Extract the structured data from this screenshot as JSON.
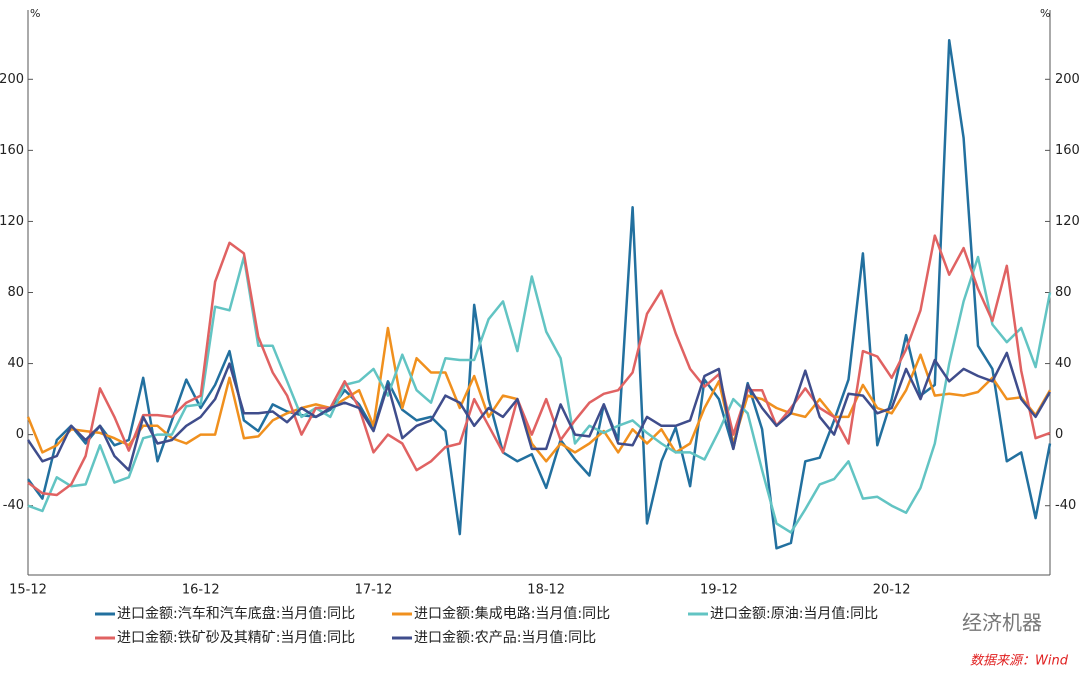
{
  "chart_data": {
    "type": "line",
    "y_unit": "%",
    "categories": [
      "15-12",
      null,
      null,
      null,
      null,
      null,
      null,
      null,
      null,
      null,
      null,
      null,
      "16-12",
      null,
      null,
      null,
      null,
      null,
      null,
      null,
      null,
      null,
      null,
      null,
      "17-12",
      null,
      null,
      null,
      null,
      null,
      null,
      null,
      null,
      null,
      null,
      null,
      "18-12",
      null,
      null,
      null,
      null,
      null,
      null,
      null,
      null,
      null,
      null,
      null,
      "19-12",
      null,
      null,
      null,
      null,
      null,
      null,
      null,
      null,
      null,
      null,
      null,
      "20-12",
      null,
      null,
      null,
      null,
      null,
      null,
      null,
      null,
      null,
      null,
      null
    ],
    "series": [
      {
        "name": "进口金额:汽车和汽车底盘:当月值:同比",
        "color": "#22709f",
        "values": [
          -25,
          -36,
          -3,
          5,
          -5,
          5,
          -6,
          -3,
          32,
          -15,
          8,
          31,
          15,
          28,
          47,
          8,
          2,
          17,
          13,
          11,
          10,
          14,
          25,
          17,
          3,
          30,
          14,
          8,
          10,
          2,
          -56,
          73,
          20,
          -10,
          -15,
          -11,
          -30,
          -3,
          -14,
          -23,
          17,
          -3,
          128,
          -50,
          -15,
          4,
          -29,
          31,
          20,
          -8,
          29,
          3,
          -64,
          -61,
          -15,
          -13,
          8,
          31,
          102,
          -6,
          20,
          56,
          22,
          28,
          222,
          167,
          50,
          37,
          -15,
          -10,
          -47,
          -5
        ]
      },
      {
        "name": "进口金额:集成电路:当月值:同比",
        "color": "#f0901e",
        "values": [
          10,
          -10,
          -6,
          3,
          2,
          1,
          -2,
          -6,
          5,
          5,
          -2,
          -5,
          0,
          0,
          32,
          -2,
          -1,
          8,
          12,
          15,
          17,
          15,
          20,
          25,
          5,
          60,
          15,
          43,
          35,
          35,
          15,
          33,
          10,
          22,
          20,
          -5,
          -15,
          -5,
          -10,
          -5,
          2,
          -10,
          3,
          -5,
          3,
          -10,
          -5,
          15,
          30,
          -5,
          22,
          20,
          15,
          12,
          10,
          20,
          10,
          10,
          28,
          15,
          12,
          25,
          45,
          22,
          23,
          22,
          24,
          32,
          20,
          21,
          11,
          25
        ]
      },
      {
        "name": "进口金额:原油:当月值:同比",
        "color": "#62c4c3",
        "values": [
          -40,
          -43,
          -24,
          -29,
          -28,
          -6,
          -27,
          -24,
          -2,
          0,
          0,
          16,
          17,
          72,
          70,
          100,
          50,
          50,
          30,
          10,
          15,
          10,
          28,
          30,
          37,
          22,
          45,
          25,
          18,
          43,
          42,
          42,
          65,
          75,
          47,
          89,
          58,
          43,
          -5,
          5,
          1,
          5,
          8,
          1,
          -5,
          -10,
          -10,
          -14,
          2,
          20,
          12,
          -20,
          -50,
          -55,
          -42,
          -28,
          -25,
          -15,
          -36,
          -35,
          -40,
          -44,
          -30,
          -5,
          40,
          75,
          100,
          62,
          52,
          60,
          38,
          80
        ]
      },
      {
        "name": "进口金额:铁矿砂及其精矿:当月值:同比",
        "color": "#e06262",
        "values": [
          -27,
          -33,
          -34,
          -28,
          -12,
          26,
          10,
          -9,
          11,
          11,
          10,
          18,
          22,
          86,
          108,
          102,
          55,
          35,
          22,
          0,
          15,
          15,
          30,
          15,
          -10,
          0,
          -5,
          -20,
          -15,
          -7,
          -5,
          20,
          5,
          -10,
          20,
          0,
          20,
          -3,
          8,
          18,
          23,
          25,
          35,
          68,
          81,
          57,
          37,
          27,
          34,
          0,
          25,
          25,
          5,
          15,
          26,
          15,
          10,
          -5,
          47,
          44,
          32,
          48,
          70,
          112,
          90,
          105,
          82,
          64,
          95,
          36,
          -2,
          1
        ]
      },
      {
        "name": "进口金额:农产品:当月值:同比",
        "color": "#3f4d8c",
        "values": [
          -3,
          -15,
          -12,
          5,
          -3,
          5,
          -12,
          -20,
          10,
          -5,
          -3,
          5,
          10,
          20,
          40,
          12,
          12,
          13,
          7,
          15,
          10,
          15,
          18,
          15,
          2,
          28,
          -2,
          5,
          8,
          22,
          18,
          5,
          15,
          10,
          20,
          -8,
          -8,
          17,
          0,
          -1,
          17,
          -5,
          -6,
          10,
          5,
          5,
          8,
          33,
          37,
          -8,
          28,
          15,
          5,
          12,
          36,
          10,
          0,
          23,
          22,
          12,
          15,
          37,
          20,
          42,
          30,
          37,
          33,
          30,
          46,
          20,
          10,
          24
        ]
      }
    ],
    "ylim": [
      -79,
      239
    ],
    "yticks": [
      -40,
      0,
      40,
      80,
      120,
      160,
      200
    ],
    "watermark": "经济机器",
    "source": "数据来源：Wind"
  }
}
